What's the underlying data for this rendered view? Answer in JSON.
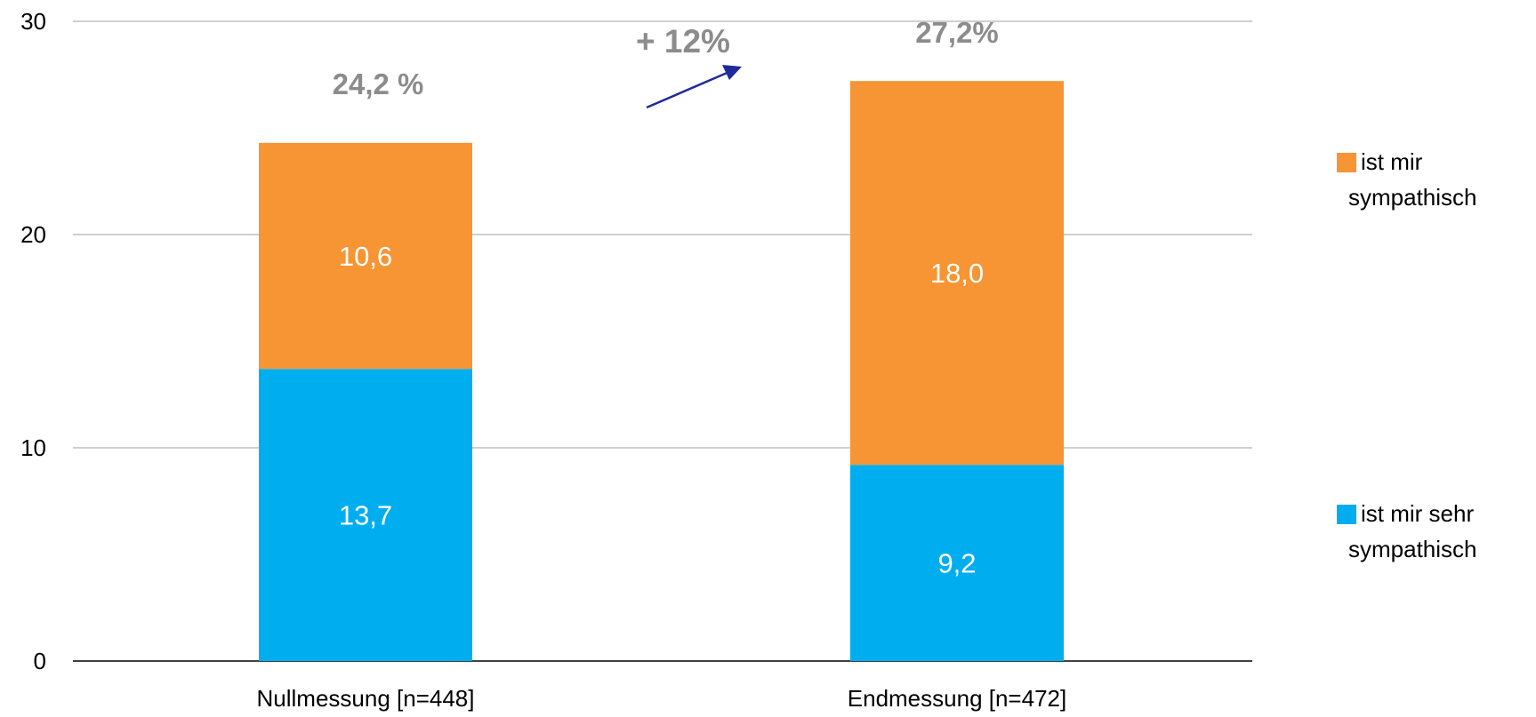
{
  "chart_data": {
    "type": "bar",
    "stacked": true,
    "categories": [
      "Nullmessung [n=448]",
      "Endmessung [n=472]"
    ],
    "series": [
      {
        "name": "ist mir sehr sympathisch",
        "values": [
          13.7,
          9.2
        ],
        "labels": [
          "13,7",
          "9,2"
        ],
        "color": "#00aeef"
      },
      {
        "name": "ist mir sympathisch",
        "values": [
          10.6,
          18.0
        ],
        "labels": [
          "10,6",
          "18,0"
        ],
        "color": "#f79433"
      }
    ],
    "totals": [
      "24,2 %",
      "27,2%"
    ],
    "change_annotation": "+ 12%",
    "arrow_color": "#1f2a9c",
    "gridline_color": "#bfbfbf",
    "axis_color": "#000000",
    "ylim": [
      0,
      30
    ],
    "yticks": [
      0,
      10,
      20,
      30
    ],
    "grid": true,
    "legend_position": "right",
    "title": "",
    "xlabel": "",
    "ylabel": ""
  }
}
